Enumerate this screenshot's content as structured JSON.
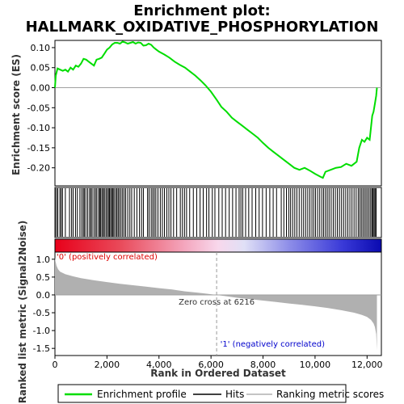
{
  "chart_data": [
    {
      "type": "line",
      "title_line1": "Enrichment plot:",
      "title_line2": "HALLMARK_OXIDATIVE_PHOSPHORYLATION",
      "ylabel": "Enrichment score (ES)",
      "ylim": [
        -0.245,
        0.118
      ],
      "yticks": [
        0.1,
        0.05,
        0.0,
        -0.05,
        -0.1,
        -0.15,
        -0.2
      ],
      "ytick_labels": [
        "0.10",
        "0.05",
        "0.00",
        "-0.05",
        "-0.10",
        "-0.15",
        "-0.20"
      ],
      "xlim": [
        0,
        12550
      ],
      "grid": false,
      "series": [
        {
          "name": "Enrichment profile",
          "color": "#00dd00",
          "x": [
            0,
            30,
            100,
            200,
            300,
            400,
            500,
            600,
            700,
            800,
            900,
            1000,
            1100,
            1200,
            1300,
            1400,
            1500,
            1600,
            1700,
            1800,
            1900,
            2000,
            2100,
            2200,
            2300,
            2400,
            2500,
            2600,
            2700,
            2800,
            2900,
            3000,
            3100,
            3200,
            3300,
            3400,
            3500,
            3600,
            3700,
            3800,
            3900,
            4000,
            4200,
            4400,
            4600,
            4800,
            5000,
            5200,
            5400,
            5600,
            5800,
            6000,
            6216,
            6400,
            6600,
            6800,
            7000,
            7200,
            7400,
            7600,
            7800,
            8000,
            8200,
            8400,
            8600,
            8800,
            9000,
            9200,
            9400,
            9600,
            9800,
            10000,
            10200,
            10300,
            10400,
            10600,
            10800,
            11000,
            11200,
            11400,
            11600,
            11700,
            11800,
            11900,
            12000,
            12100,
            12150,
            12200,
            12250,
            12300,
            12350,
            12380
          ],
          "y": [
            0.0,
            0.03,
            0.048,
            0.045,
            0.042,
            0.045,
            0.04,
            0.05,
            0.045,
            0.055,
            0.052,
            0.06,
            0.072,
            0.07,
            0.065,
            0.06,
            0.055,
            0.07,
            0.072,
            0.075,
            0.085,
            0.095,
            0.1,
            0.108,
            0.112,
            0.112,
            0.11,
            0.115,
            0.113,
            0.11,
            0.112,
            0.114,
            0.11,
            0.113,
            0.112,
            0.105,
            0.106,
            0.11,
            0.107,
            0.1,
            0.095,
            0.09,
            0.083,
            0.075,
            0.065,
            0.057,
            0.05,
            0.04,
            0.03,
            0.018,
            0.005,
            -0.01,
            -0.03,
            -0.048,
            -0.06,
            -0.075,
            -0.085,
            -0.095,
            -0.105,
            -0.115,
            -0.125,
            -0.138,
            -0.15,
            -0.16,
            -0.17,
            -0.18,
            -0.19,
            -0.2,
            -0.205,
            -0.2,
            -0.207,
            -0.215,
            -0.222,
            -0.225,
            -0.21,
            -0.205,
            -0.2,
            -0.198,
            -0.19,
            -0.195,
            -0.185,
            -0.15,
            -0.13,
            -0.135,
            -0.125,
            -0.13,
            -0.1,
            -0.07,
            -0.06,
            -0.04,
            -0.02,
            0.0
          ]
        }
      ],
      "zero_line": 0.0
    },
    {
      "type": "hits",
      "series": [
        {
          "name": "Hits",
          "color": "#000000",
          "x": [
            10,
            60,
            110,
            190,
            240,
            290,
            400,
            560,
            640,
            700,
            790,
            860,
            960,
            1030,
            1090,
            1130,
            1190,
            1260,
            1330,
            1380,
            1430,
            1500,
            1560,
            1610,
            1680,
            1720,
            1760,
            1810,
            1860,
            1900,
            1960,
            2010,
            2060,
            2100,
            2140,
            2190,
            2230,
            2270,
            2330,
            2380,
            2430,
            2480,
            2540,
            2600,
            2660,
            2720,
            2800,
            2880,
            2950,
            3050,
            3150,
            3250,
            3330,
            3400,
            3560,
            3620,
            3700,
            3760,
            3820,
            3880,
            3960,
            4050,
            4130,
            4210,
            4300,
            4380,
            4460,
            4560,
            4680,
            4820,
            4900,
            4980,
            5060,
            5180,
            5320,
            5450,
            5580,
            5700,
            5830,
            5920,
            6050,
            6150,
            6300,
            6430,
            6560,
            6700,
            6830,
            6960,
            7080,
            7150,
            7220,
            7330,
            7450,
            7580,
            7720,
            7850,
            7980,
            8120,
            8260,
            8390,
            8520,
            8700,
            8800,
            8900,
            8990,
            9060,
            9140,
            9220,
            9300,
            9390,
            9480,
            9560,
            9640,
            9720,
            9800,
            9880,
            9950,
            10020,
            10100,
            10180,
            10260,
            10330,
            10400,
            10470,
            10540,
            10620,
            10700,
            10780,
            10860,
            10940,
            11020,
            11100,
            11180,
            11260,
            11340,
            11420,
            11500,
            11580,
            11660,
            11720,
            11780,
            11840,
            11900,
            11960,
            12020,
            12080,
            12140,
            12190,
            12230,
            12270,
            12310,
            12350
          ]
        }
      ]
    },
    {
      "type": "area",
      "ylabel": "Ranked list metric (Signal2Noise)",
      "xlabel": "Rank in Ordered Dataset",
      "ylim": [
        -1.7,
        1.2
      ],
      "yticks": [
        1.0,
        0.5,
        0.0,
        -0.5,
        -1.0,
        -1.5
      ],
      "ytick_labels": [
        "1.0",
        "0.5",
        "0.0",
        "-0.5",
        "-1.0",
        "-1.5"
      ],
      "xlim": [
        0,
        12550
      ],
      "xticks": [
        0,
        2000,
        4000,
        6000,
        8000,
        10000,
        12000
      ],
      "xtick_labels": [
        "0",
        "2,000",
        "4,000",
        "6,000",
        "8,000",
        "10,000",
        "12,000"
      ],
      "series": [
        {
          "name": "Ranking metric scores",
          "color": "#b0b0b0",
          "x": [
            0,
            20,
            60,
            120,
            200,
            400,
            700,
            1000,
            1500,
            2000,
            2500,
            3000,
            3500,
            4000,
            4500,
            5000,
            5500,
            6000,
            6216,
            6500,
            7000,
            7500,
            8000,
            8500,
            9000,
            9500,
            10000,
            10500,
            11000,
            11500,
            11800,
            12000,
            12150,
            12250,
            12300,
            12350,
            12380
          ],
          "y": [
            1.05,
            0.95,
            0.82,
            0.72,
            0.65,
            0.58,
            0.52,
            0.47,
            0.41,
            0.36,
            0.31,
            0.27,
            0.23,
            0.19,
            0.15,
            0.1,
            0.06,
            0.02,
            0.0,
            -0.03,
            -0.08,
            -0.12,
            -0.16,
            -0.2,
            -0.24,
            -0.28,
            -0.32,
            -0.37,
            -0.43,
            -0.5,
            -0.56,
            -0.62,
            -0.7,
            -0.8,
            -0.9,
            -1.1,
            -1.55
          ]
        }
      ],
      "zero_cross": 6216,
      "annotations": {
        "zero_cross_label": "Zero cross at 6216",
        "pos_label": "'0' (positively correlated)",
        "neg_label": "'1' (negatively correlated)",
        "pos_color": "#dd0000",
        "neg_color": "#0000cc"
      }
    }
  ],
  "legend": {
    "placement": "bottom",
    "items": [
      {
        "label": "Enrichment profile",
        "color": "#00dd00"
      },
      {
        "label": "Hits",
        "color": "#000000"
      },
      {
        "label": "Ranking metric scores",
        "color": "#b0b0b0"
      }
    ]
  }
}
